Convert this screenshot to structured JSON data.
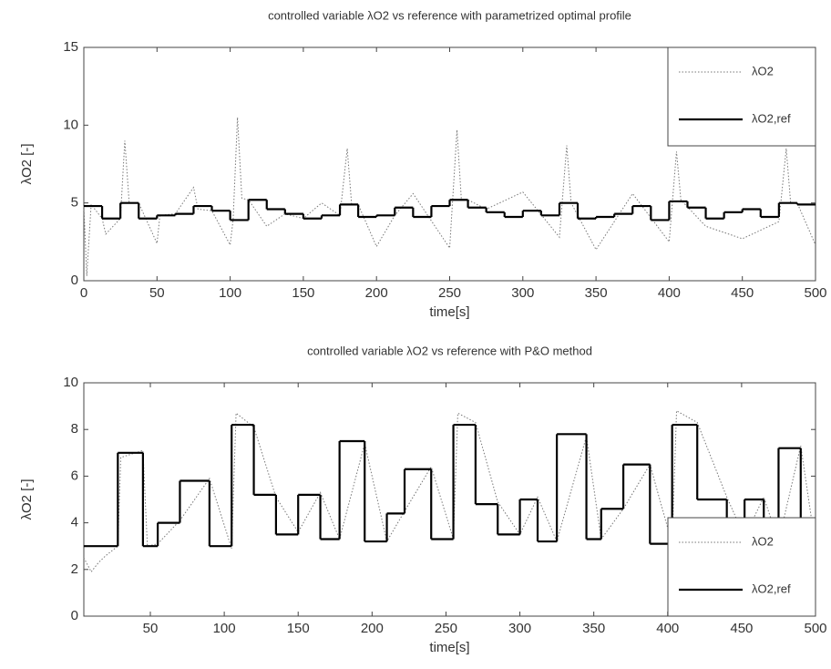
{
  "chart_data": [
    {
      "type": "line",
      "title": "controlled variable λO2 vs reference with parametrized optimal profile",
      "x_label": "time[s]",
      "y_label": "λO2 [-]",
      "xlim": [
        0,
        500
      ],
      "xticks": [
        0,
        50,
        100,
        150,
        200,
        250,
        300,
        350,
        400,
        450,
        500
      ],
      "ylim": [
        0,
        15
      ],
      "yticks": [
        0,
        5,
        10,
        15
      ],
      "legend": "upper right",
      "grid": false,
      "series": [
        {
          "name": "λO2",
          "color": "#777777",
          "style": "dotted",
          "x": [
            0,
            2,
            5,
            12.5,
            15,
            25,
            28,
            31,
            37.5,
            50,
            52,
            62.5,
            75,
            78,
            87.5,
            100,
            102,
            105,
            108,
            112.5,
            125,
            137.5,
            150,
            162.5,
            175,
            180,
            183,
            187.5,
            200,
            212.5,
            225,
            250,
            255,
            258,
            262.5,
            275,
            300,
            325,
            330,
            333,
            350,
            375,
            400,
            405,
            408,
            425,
            450,
            475,
            480,
            483,
            487.5,
            500
          ],
          "values": [
            4.8,
            0.3,
            4.9,
            4.0,
            3.0,
            4.0,
            9.0,
            5.0,
            5.0,
            2.4,
            4.2,
            4.3,
            6.0,
            4.6,
            4.5,
            2.3,
            3.9,
            10.5,
            5.3,
            5.2,
            3.5,
            4.3,
            4.0,
            5.0,
            4.2,
            8.5,
            4.9,
            4.9,
            2.2,
            4.2,
            5.6,
            2.1,
            9.7,
            5.2,
            5.2,
            4.6,
            5.7,
            2.8,
            8.7,
            5.0,
            2.0,
            5.6,
            2.5,
            8.3,
            5.2,
            3.5,
            2.7,
            3.8,
            8.5,
            5.0,
            5.0,
            2.3
          ]
        },
        {
          "name": "λO2,ref",
          "color": "#000000",
          "style": "steps",
          "x": [
            0,
            12.5,
            25,
            37.5,
            50,
            62.5,
            75,
            87.5,
            100,
            112.5,
            125,
            137.5,
            150,
            162.5,
            175,
            187.5,
            200,
            212.5,
            225,
            237.5,
            250,
            262.5,
            275,
            287.5,
            300,
            312.5,
            325,
            337.5,
            350,
            362.5,
            375,
            387.5,
            400,
            412.5,
            425,
            437.5,
            450,
            462.5,
            475,
            487.5,
            500
          ],
          "values": [
            4.8,
            4.0,
            5.0,
            4.0,
            4.2,
            4.3,
            4.8,
            4.5,
            3.9,
            5.2,
            4.6,
            4.3,
            4.0,
            4.2,
            4.9,
            4.1,
            4.2,
            4.7,
            4.1,
            4.8,
            5.2,
            4.7,
            4.4,
            4.1,
            4.5,
            4.2,
            5.0,
            4.0,
            4.1,
            4.3,
            4.8,
            3.9,
            5.1,
            4.7,
            4.0,
            4.4,
            4.6,
            4.1,
            5.0,
            4.9,
            4.0
          ]
        }
      ]
    },
    {
      "type": "line",
      "title": "controlled variable λO2 vs reference with P&O method",
      "x_label": "time[s]",
      "y_label": "λO2 [-]",
      "xlim": [
        5,
        500
      ],
      "xticks": [
        50,
        100,
        150,
        200,
        250,
        300,
        350,
        400,
        450,
        500
      ],
      "ylim": [
        0,
        10
      ],
      "yticks": [
        0,
        2,
        4,
        6,
        8,
        10
      ],
      "legend": "lower right",
      "grid": false,
      "series": [
        {
          "name": "λO2",
          "color": "#777777",
          "style": "dotted",
          "x": [
            5,
            10,
            15,
            20,
            28,
            30,
            45,
            48,
            55,
            70,
            90,
            105,
            108,
            120,
            135,
            150,
            165,
            178,
            195,
            210,
            222,
            240,
            255,
            258,
            270,
            285,
            300,
            312,
            325,
            345,
            355,
            370,
            388,
            403,
            406,
            420,
            440,
            452,
            465,
            475,
            490,
            500
          ],
          "values": [
            2.5,
            1.9,
            2.3,
            2.6,
            3.0,
            6.8,
            7.1,
            3.0,
            3.1,
            4.1,
            5.9,
            2.9,
            8.7,
            8.1,
            5.1,
            3.6,
            5.3,
            3.3,
            7.4,
            3.2,
            4.5,
            6.4,
            3.3,
            8.7,
            8.3,
            4.9,
            3.5,
            5.1,
            3.2,
            7.7,
            3.3,
            4.6,
            6.5,
            3.1,
            8.8,
            8.3,
            5.1,
            3.4,
            5.1,
            3.2,
            7.3,
            3.0
          ]
        },
        {
          "name": "λO2,ref",
          "color": "#000000",
          "style": "steps",
          "x": [
            5,
            28,
            45,
            55,
            70,
            90,
            105,
            120,
            135,
            150,
            165,
            178,
            195,
            210,
            222,
            240,
            255,
            270,
            285,
            300,
            312,
            325,
            345,
            355,
            370,
            388,
            403,
            420,
            440,
            452,
            465,
            475,
            490,
            500
          ],
          "values": [
            3.0,
            7.0,
            3.0,
            4.0,
            5.8,
            3.0,
            8.2,
            5.2,
            3.5,
            5.2,
            3.3,
            7.5,
            3.2,
            4.4,
            6.3,
            3.3,
            8.2,
            4.8,
            3.5,
            5.0,
            3.2,
            7.8,
            3.3,
            4.6,
            6.5,
            3.1,
            8.2,
            5.0,
            3.5,
            5.0,
            3.2,
            7.2,
            3.0,
            3.0
          ]
        }
      ]
    }
  ]
}
